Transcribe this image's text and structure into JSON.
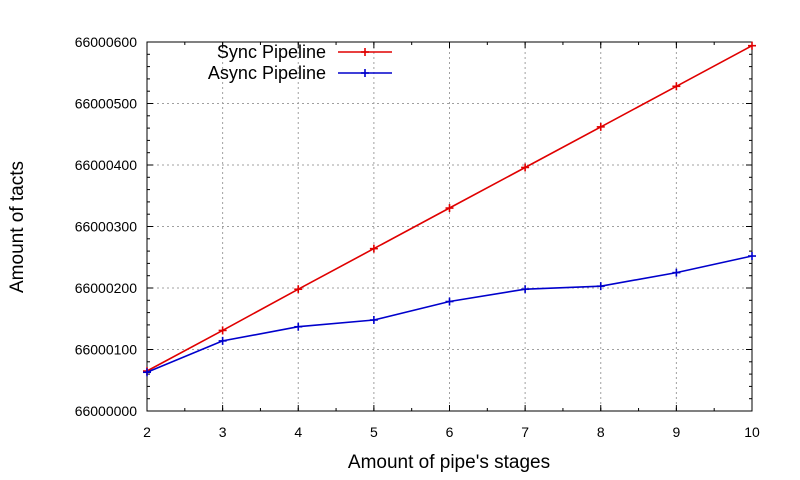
{
  "chart_data": {
    "type": "line",
    "title": "",
    "xlabel": "Amount of pipe's stages",
    "ylabel": "Amount of tacts",
    "x": [
      2,
      3,
      4,
      5,
      6,
      7,
      8,
      9,
      10
    ],
    "xlim": [
      2,
      10
    ],
    "ylim": [
      66000000,
      66000600
    ],
    "xticks": [
      "2",
      "3",
      "4",
      "5",
      "6",
      "7",
      "8",
      "9",
      "10"
    ],
    "yticks": [
      "66000000",
      "66000100",
      "66000200",
      "66000300",
      "66000400",
      "66000500",
      "66000600"
    ],
    "grid": true,
    "legend_position": "top-left",
    "series": [
      {
        "name": "Sync Pipeline",
        "color": "#e00000",
        "marker": "plus",
        "values": [
          66000065,
          66000131,
          66000198,
          66000264,
          66000330,
          66000396,
          66000462,
          66000528,
          66000594
        ]
      },
      {
        "name": "Async Pipeline",
        "color": "#0000cc",
        "marker": "plus",
        "values": [
          66000063,
          66000114,
          66000137,
          66000148,
          66000178,
          66000198,
          66000203,
          66000225,
          66000252
        ]
      }
    ]
  }
}
